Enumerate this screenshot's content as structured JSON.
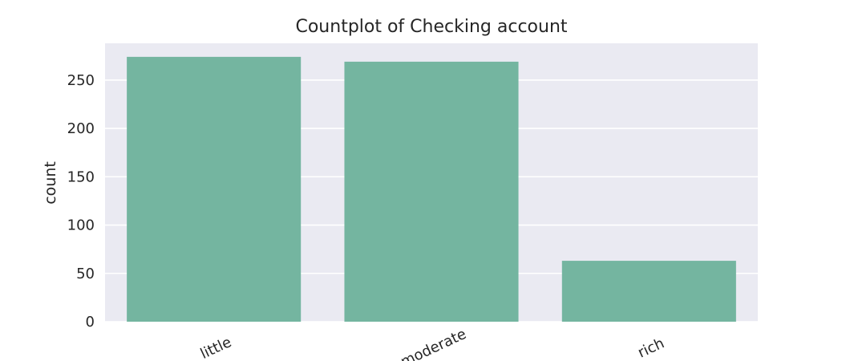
{
  "chart_data": {
    "type": "bar",
    "title": "Countplot of Checking account",
    "xlabel": "",
    "ylabel": "count",
    "categories": [
      "little",
      "moderate",
      "rich"
    ],
    "values": [
      274,
      269,
      63
    ],
    "ylim": [
      0,
      288
    ],
    "yticks": [
      0,
      50,
      100,
      150,
      200,
      250
    ],
    "grid": true,
    "bar_color": "#74b5a0",
    "plot_background": "#eaeaf2",
    "grid_color": "#ffffff",
    "text_color": "#262626"
  }
}
